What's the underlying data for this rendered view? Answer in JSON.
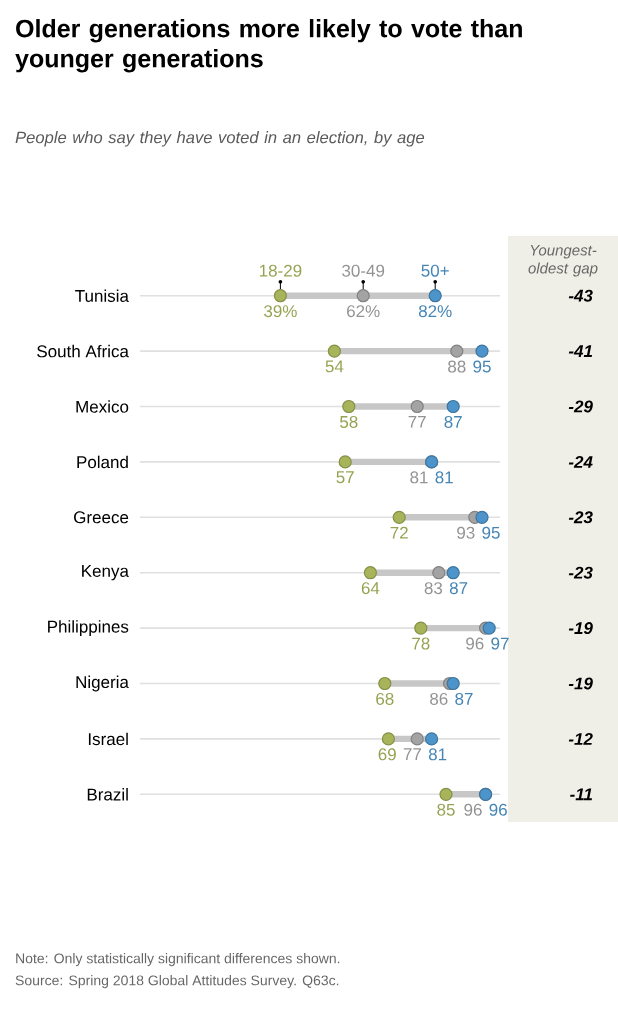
{
  "chart_data": {
    "type": "scatter",
    "orientation": "horizontal",
    "title": "Older generations more likely to vote than younger generations",
    "subtitle": "People who say they have voted in an election, by age",
    "categories": [
      "Tunisia",
      "South Africa",
      "Mexico",
      "Poland",
      "Greece",
      "Kenya",
      "Philippines",
      "Nigeria",
      "Israel",
      "Brazil"
    ],
    "xlim": [
      0,
      100
    ],
    "grid": "y",
    "marker": "circle",
    "tick_labels": "y",
    "series": [
      {
        "name": "18-29",
        "color": "#a7b45a",
        "values": [
          39,
          54,
          58,
          57,
          72,
          64,
          78,
          68,
          69,
          85
        ],
        "value_labels": [
          "39%",
          "54",
          "58",
          "57",
          "72",
          "64",
          "78",
          "68",
          "69",
          "85"
        ]
      },
      {
        "name": "30-49",
        "color": "#a3a3a3",
        "values": [
          62,
          88,
          77,
          81,
          93,
          83,
          96,
          86,
          77,
          96
        ],
        "value_labels": [
          "62%",
          "88",
          "77",
          "81",
          "93",
          "83",
          "96",
          "86",
          "77",
          "96"
        ]
      },
      {
        "name": "50+",
        "color": "#4c94c9",
        "values": [
          82,
          95,
          87,
          81,
          95,
          87,
          97,
          87,
          81,
          96
        ],
        "value_labels": [
          "82%",
          "95",
          "87",
          "81",
          "95",
          "87",
          "97",
          "87",
          "81",
          "96"
        ]
      }
    ],
    "annotations": [
      "Youngest-oldest gap",
      "-43",
      "-41",
      "-29",
      "-24",
      "-23",
      "-23",
      "-19",
      "-19",
      "-12",
      "-11",
      "Note: Only statistically significant differences shown.",
      "Source: Spring 2018 Global Attitudes Survey. Q63c."
    ]
  }
}
